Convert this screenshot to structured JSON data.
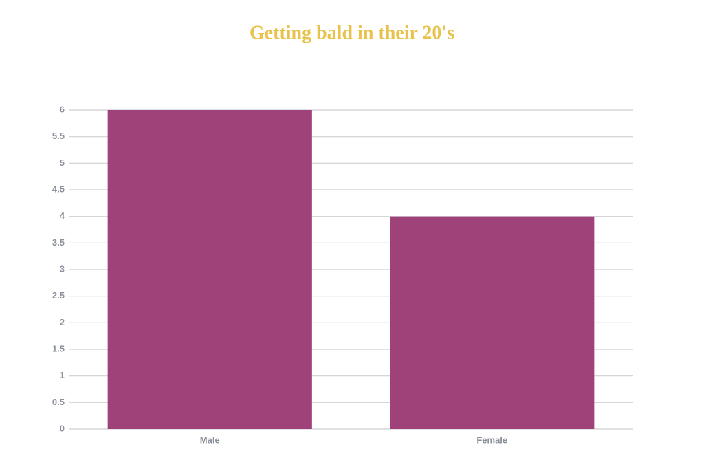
{
  "chart_data": {
    "type": "bar",
    "title": "Getting bald in their 20's",
    "categories": [
      "Male",
      "Female"
    ],
    "values": [
      6,
      4
    ],
    "color": "#a0427a",
    "ylim": [
      0,
      6
    ],
    "yticks": [
      0,
      0.5,
      1,
      1.5,
      2,
      2.5,
      3,
      3.5,
      4,
      4.5,
      5,
      5.5,
      6
    ],
    "grid": true
  }
}
